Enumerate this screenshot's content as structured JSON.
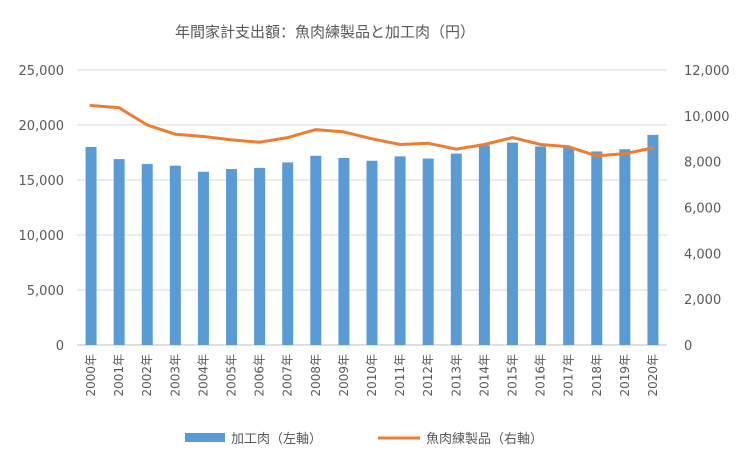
{
  "chart_data": {
    "type": "bar+line",
    "title": "年間家計支出額：魚肉練製品と加工肉（円）",
    "categories": [
      "2000年",
      "2001年",
      "2002年",
      "2003年",
      "2004年",
      "2005年",
      "2006年",
      "2007年",
      "2008年",
      "2009年",
      "2010年",
      "2011年",
      "2012年",
      "2013年",
      "2014年",
      "2015年",
      "2016年",
      "2017年",
      "2018年",
      "2019年",
      "2020年"
    ],
    "series": [
      {
        "name": "加工肉（左軸）",
        "type": "bar",
        "axis": "left",
        "color": "#5b9bd5",
        "values": [
          18000,
          16900,
          16450,
          16300,
          15750,
          16000,
          16100,
          16600,
          17200,
          17000,
          16750,
          17150,
          16950,
          17400,
          18150,
          18400,
          18050,
          17950,
          17600,
          17800,
          19100
        ]
      },
      {
        "name": "魚肉練製品（右軸）",
        "type": "line",
        "axis": "right",
        "color": "#ed7d31",
        "values": [
          10450,
          10350,
          9600,
          9200,
          9100,
          8950,
          8850,
          9050,
          9400,
          9300,
          9000,
          8750,
          8800,
          8550,
          8750,
          9050,
          8750,
          8650,
          8250,
          8350,
          8600
        ]
      }
    ],
    "left_axis": {
      "min": 0,
      "max": 25000,
      "ticks": [
        "0",
        "5,000",
        "10,000",
        "15,000",
        "20,000",
        "25,000"
      ]
    },
    "right_axis": {
      "min": 0,
      "max": 12000,
      "ticks": [
        "0",
        "2,000",
        "4,000",
        "6,000",
        "8,000",
        "10,000",
        "12,000"
      ]
    },
    "grid": true,
    "legend_position": "bottom"
  }
}
